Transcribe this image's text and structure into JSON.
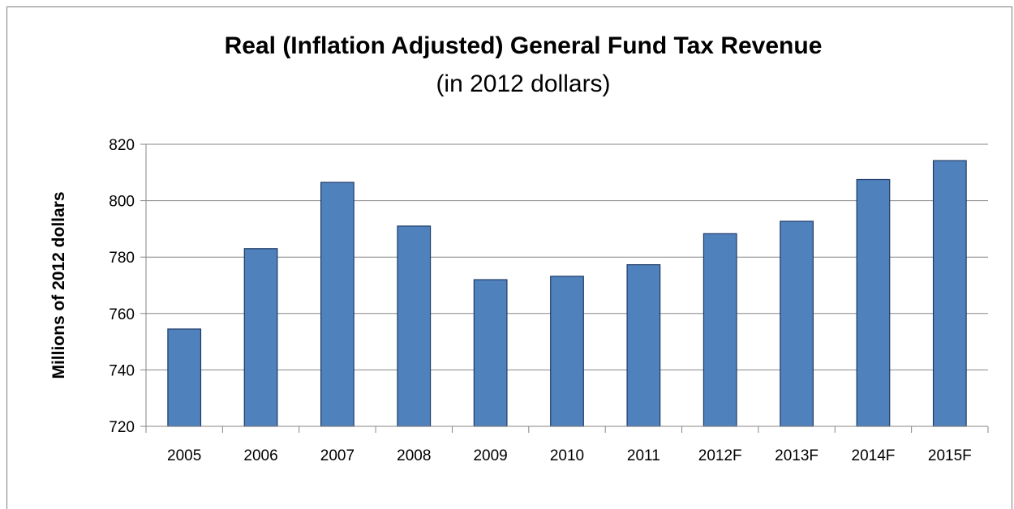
{
  "chart_data": {
    "type": "bar",
    "title": "Real (Inflation Adjusted) General Fund Tax Revenue",
    "subtitle": "(in 2012 dollars)",
    "xlabel": "",
    "ylabel": "Millions of 2012 dollars",
    "categories": [
      "2005",
      "2006",
      "2007",
      "2008",
      "2009",
      "2010",
      "2011",
      "2012F",
      "2013F",
      "2014F",
      "2015F"
    ],
    "values": [
      754.5,
      783,
      806.5,
      791,
      772,
      773.2,
      777.3,
      788.3,
      792.7,
      807.5,
      814.2
    ],
    "ylim": [
      720,
      820
    ],
    "yticks": [
      720,
      740,
      760,
      780,
      800,
      820
    ],
    "grid": true,
    "legend": "none",
    "bar_color": "#4f81bd",
    "bar_edge_color": "#1f3b66"
  }
}
